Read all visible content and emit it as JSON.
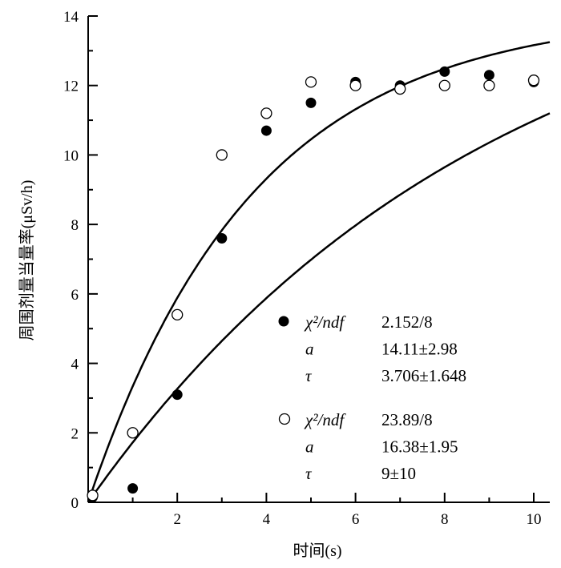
{
  "chart_data": {
    "type": "scatter",
    "title": "",
    "xlabel": "时间(s)",
    "ylabel": "周围剂量当量率(μSv/h)",
    "xlim": [
      0,
      10
    ],
    "ylim": [
      0,
      14
    ],
    "xticks": [
      2,
      4,
      6,
      8,
      10
    ],
    "yticks": [
      0,
      2,
      4,
      6,
      8,
      10,
      12,
      14
    ],
    "grid": false,
    "legend_position": "lower-right",
    "series": [
      {
        "marker": "filled-circle",
        "x": [
          0.1,
          1,
          2,
          3,
          4,
          5,
          6,
          7,
          8,
          9,
          10
        ],
        "y": [
          0.15,
          0.4,
          3.1,
          7.6,
          10.7,
          11.5,
          12.1,
          12.0,
          12.4,
          12.3,
          12.1
        ],
        "fit_curve": {
          "a": 14.11,
          "tau": 3.706
        },
        "legend": [
          {
            "label": "χ²/ndf",
            "value": "2.152/8",
            "italic": false
          },
          {
            "label": "a",
            "value": "14.11±2.98",
            "italic": true
          },
          {
            "label": "τ",
            "value": "3.706±1.648",
            "italic": false
          }
        ]
      },
      {
        "marker": "open-circle",
        "x": [
          0.1,
          1,
          2,
          3,
          4,
          5,
          6,
          7,
          8,
          9,
          10
        ],
        "y": [
          0.2,
          2.0,
          5.4,
          10.0,
          11.2,
          12.1,
          12.0,
          11.9,
          12.0,
          12.0,
          12.15
        ],
        "fit_curve": {
          "a": 16.38,
          "tau": 9
        },
        "legend": [
          {
            "label": "χ²/ndf",
            "value": "23.89/8",
            "italic": false
          },
          {
            "label": "a",
            "value": "16.38±1.95",
            "italic": true
          },
          {
            "label": "τ",
            "value": "9±10",
            "italic": false
          }
        ]
      }
    ]
  }
}
